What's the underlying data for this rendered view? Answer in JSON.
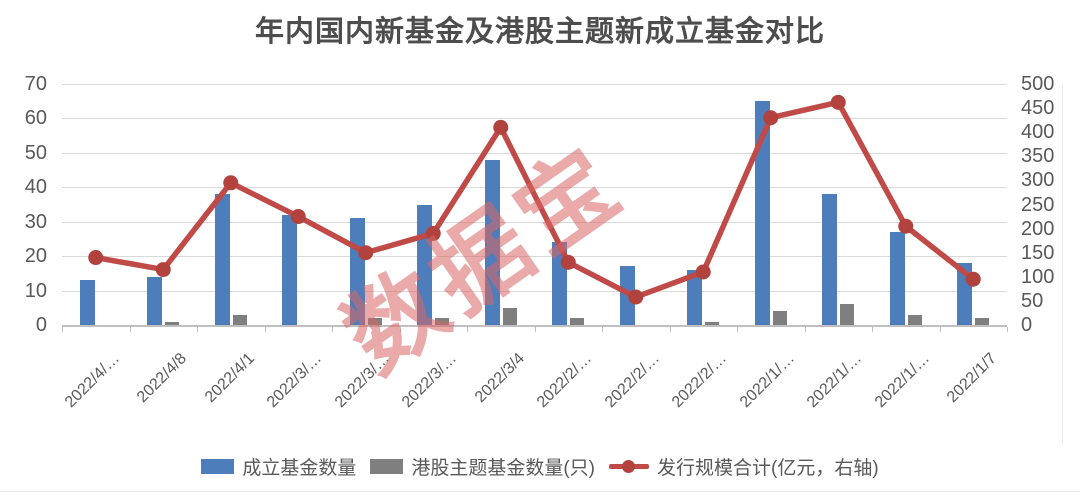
{
  "title": "年内国内新基金及港股主题新成立基金对比",
  "watermark": "数据宝",
  "colors": {
    "blue_bar": "#4d7dba",
    "gray_bar": "#7f7f7f",
    "red_line": "#bf4a47",
    "red_marker": "#b2423e",
    "grid": "#d9d9d9",
    "axis_text": "#595959",
    "title_text": "#4d4d4d",
    "watermark_red": "#d96666"
  },
  "chart_data": {
    "type": "bar",
    "subtype": "clustered-bars-with-line",
    "title": "年内国内新基金及港股主题新成立基金对比",
    "categories": [
      "2022/4/…",
      "2022/4/8",
      "2022/4/1",
      "2022/3/…",
      "2022/3/…",
      "2022/3/…",
      "2022/3/4",
      "2022/2/…",
      "2022/2/…",
      "2022/2/…",
      "2022/1/…",
      "2022/1/…",
      "2022/1/…",
      "2022/1/7"
    ],
    "series": [
      {
        "name": "成立基金数量",
        "type": "bar",
        "axis": "left",
        "color": "#4d7dba",
        "values": [
          13,
          14,
          38,
          32,
          31,
          35,
          48,
          24,
          17,
          16,
          65,
          38,
          27,
          18
        ]
      },
      {
        "name": "港股主题基金数量(只)",
        "type": "bar",
        "axis": "left",
        "color": "#7f7f7f",
        "values": [
          0,
          1,
          3,
          0,
          2,
          2,
          5,
          2,
          0,
          1,
          4,
          6,
          3,
          2
        ]
      },
      {
        "name": "发行规模合计(亿元，右轴)",
        "type": "line",
        "axis": "right",
        "color": "#bf4a47",
        "marker_color": "#b2423e",
        "values": [
          140,
          115,
          295,
          225,
          150,
          190,
          410,
          130,
          58,
          110,
          430,
          462,
          205,
          95
        ]
      }
    ],
    "left_axis": {
      "min": 0,
      "max": 70,
      "step": 10,
      "ticks": [
        70,
        60,
        50,
        40,
        30,
        20,
        10,
        0
      ]
    },
    "right_axis": {
      "min": 0,
      "max": 500,
      "step": 50,
      "ticks": [
        500,
        450,
        400,
        350,
        300,
        250,
        200,
        150,
        100,
        50,
        0
      ]
    },
    "grid": true,
    "legend_position": "bottom"
  }
}
